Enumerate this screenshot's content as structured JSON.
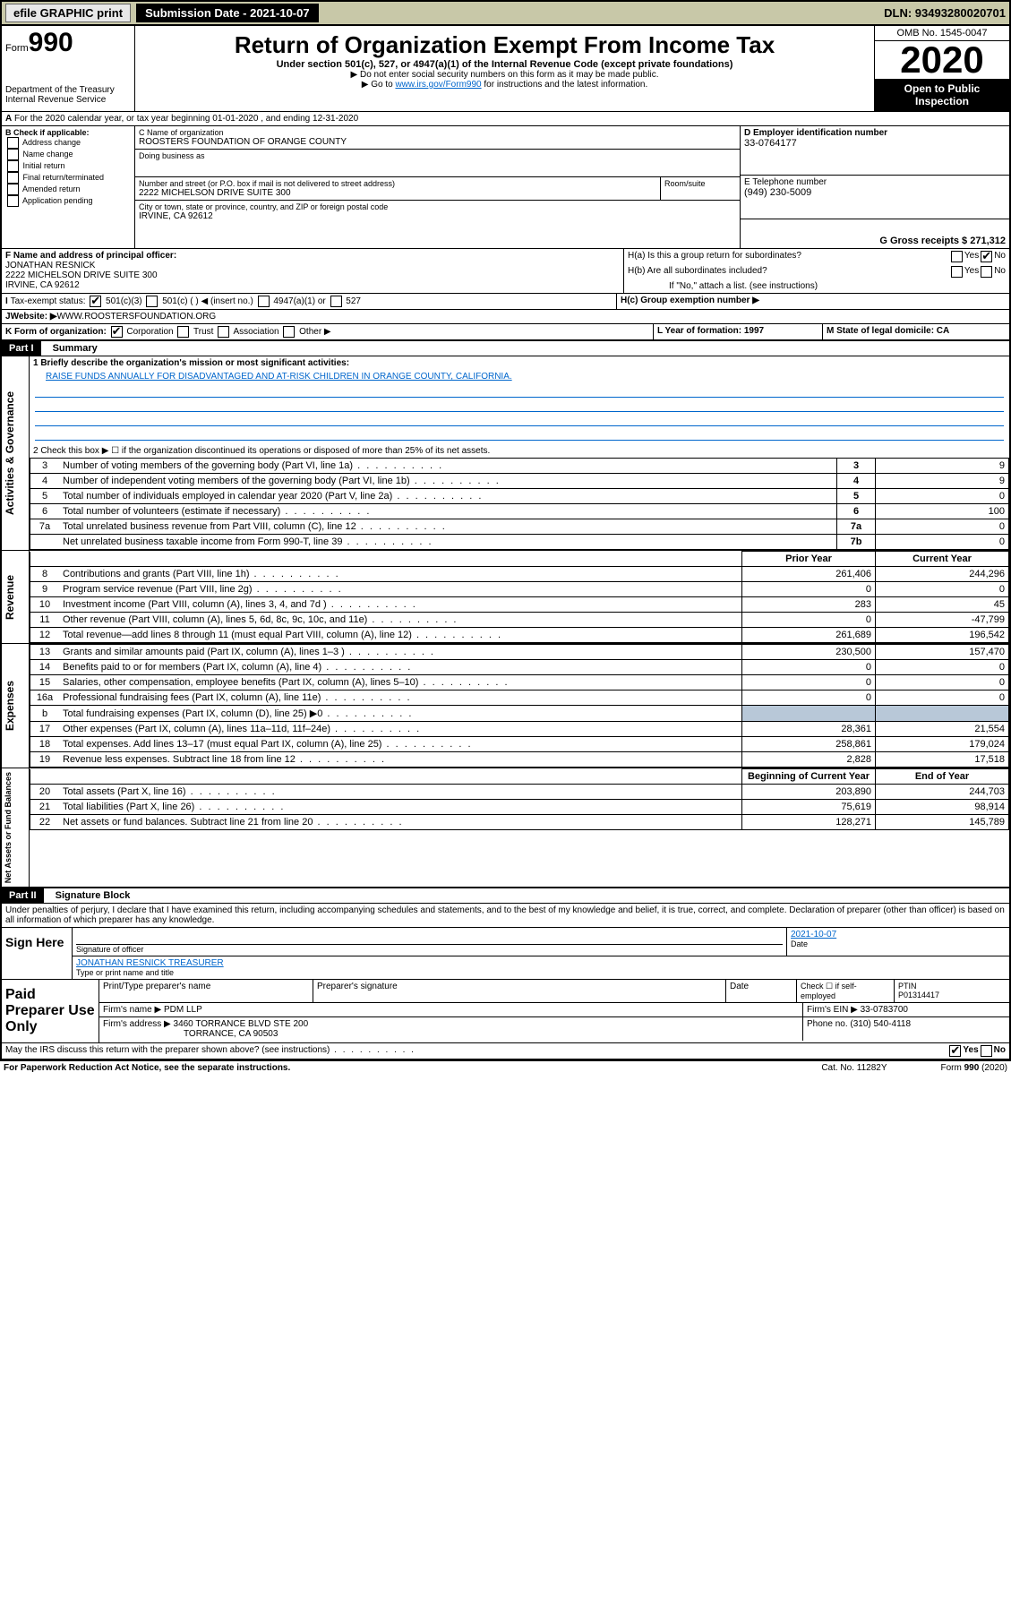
{
  "header": {
    "efile": "efile GRAPHIC print",
    "subdate_label": "Submission Date - 2021-10-07",
    "dln": "DLN: 93493280020701"
  },
  "title_block": {
    "form_label": "Form",
    "form_num": "990",
    "dept": "Department of the Treasury\nInternal Revenue Service",
    "title": "Return of Organization Exempt From Income Tax",
    "sub1": "Under section 501(c), 527, or 4947(a)(1) of the Internal Revenue Code (except private foundations)",
    "sub2": "▶ Do not enter social security numbers on this form as it may be made public.",
    "sub3_pre": "▶ Go to ",
    "sub3_link": "www.irs.gov/Form990",
    "sub3_post": " for instructions and the latest information.",
    "omb": "OMB No. 1545-0047",
    "year": "2020",
    "open": "Open to Public Inspection"
  },
  "period": {
    "line": "For the 2020 calendar year, or tax year beginning 01-01-2020     , and ending 12-31-2020"
  },
  "boxB": {
    "label": "B Check if applicable:",
    "items": [
      "Address change",
      "Name change",
      "Initial return",
      "Final return/terminated",
      "Amended return",
      "Application pending"
    ]
  },
  "boxC": {
    "label": "C Name of organization",
    "name": "ROOSTERS FOUNDATION OF ORANGE COUNTY",
    "dba_label": "Doing business as",
    "street_label": "Number and street (or P.O. box if mail is not delivered to street address)",
    "room_label": "Room/suite",
    "street": "2222 MICHELSON DRIVE SUITE 300",
    "city_label": "City or town, state or province, country, and ZIP or foreign postal code",
    "city": "IRVINE, CA  92612"
  },
  "boxD": {
    "label": "D Employer identification number",
    "value": "33-0764177"
  },
  "boxE": {
    "label": "E Telephone number",
    "value": "(949) 230-5009"
  },
  "boxG": {
    "label": "G Gross receipts $ 271,312"
  },
  "boxF": {
    "label": "F  Name and address of principal officer:",
    "name": "JONATHAN RESNICK",
    "addr1": "2222 MICHELSON DRIVE SUITE 300",
    "addr2": "IRVINE, CA  92612"
  },
  "boxH": {
    "a": "H(a)  Is this a group return for subordinates?",
    "b": "H(b)  Are all subordinates included?",
    "b_note": "If \"No,\" attach a list. (see instructions)",
    "c": "H(c)  Group exemption number ▶",
    "yes": "Yes",
    "no": "No"
  },
  "boxI": {
    "label": "Tax-exempt status:",
    "opts": [
      "501(c)(3)",
      "501(c) (   ) ◀ (insert no.)",
      "4947(a)(1) or",
      "527"
    ]
  },
  "boxJ": {
    "label": "Website: ▶",
    "value": "WWW.ROOSTERSFOUNDATION.ORG"
  },
  "boxK": {
    "label": "K Form of organization:",
    "opts": [
      "Corporation",
      "Trust",
      "Association",
      "Other ▶"
    ]
  },
  "boxL": {
    "label": "L Year of formation: 1997"
  },
  "boxM": {
    "label": "M State of legal domicile: CA"
  },
  "part1": {
    "head": "Part I",
    "title": "Summary"
  },
  "summary": {
    "l1": "1  Briefly describe the organization's mission or most significant activities:",
    "l1v": "RAISE FUNDS ANNUALLY FOR DISADVANTAGED AND AT-RISK CHILDREN IN ORANGE COUNTY, CALIFORNIA.",
    "l2": "2   Check this box ▶ ☐  if the organization discontinued its operations or disposed of more than 25% of its net assets.",
    "rows_gov": [
      {
        "n": "3",
        "d": "Number of voting members of the governing body (Part VI, line 1a)",
        "box": "3",
        "v": "9"
      },
      {
        "n": "4",
        "d": "Number of independent voting members of the governing body (Part VI, line 1b)",
        "box": "4",
        "v": "9"
      },
      {
        "n": "5",
        "d": "Total number of individuals employed in calendar year 2020 (Part V, line 2a)",
        "box": "5",
        "v": "0"
      },
      {
        "n": "6",
        "d": "Total number of volunteers (estimate if necessary)",
        "box": "6",
        "v": "100"
      },
      {
        "n": "7a",
        "d": "Total unrelated business revenue from Part VIII, column (C), line 12",
        "box": "7a",
        "v": "0"
      },
      {
        "n": "",
        "d": "Net unrelated business taxable income from Form 990-T, line 39",
        "box": "7b",
        "v": "0"
      }
    ],
    "col_prior": "Prior Year",
    "col_curr": "Current Year",
    "rows_rev": [
      {
        "n": "8",
        "d": "Contributions and grants (Part VIII, line 1h)",
        "p": "261,406",
        "c": "244,296"
      },
      {
        "n": "9",
        "d": "Program service revenue (Part VIII, line 2g)",
        "p": "0",
        "c": "0"
      },
      {
        "n": "10",
        "d": "Investment income (Part VIII, column (A), lines 3, 4, and 7d )",
        "p": "283",
        "c": "45"
      },
      {
        "n": "11",
        "d": "Other revenue (Part VIII, column (A), lines 5, 6d, 8c, 9c, 10c, and 11e)",
        "p": "0",
        "c": "-47,799"
      },
      {
        "n": "12",
        "d": "Total revenue—add lines 8 through 11 (must equal Part VIII, column (A), line 12)",
        "p": "261,689",
        "c": "196,542"
      }
    ],
    "rows_exp": [
      {
        "n": "13",
        "d": "Grants and similar amounts paid (Part IX, column (A), lines 1–3 )",
        "p": "230,500",
        "c": "157,470"
      },
      {
        "n": "14",
        "d": "Benefits paid to or for members (Part IX, column (A), line 4)",
        "p": "0",
        "c": "0"
      },
      {
        "n": "15",
        "d": "Salaries, other compensation, employee benefits (Part IX, column (A), lines 5–10)",
        "p": "0",
        "c": "0"
      },
      {
        "n": "16a",
        "d": "Professional fundraising fees (Part IX, column (A), line 11e)",
        "p": "0",
        "c": "0"
      },
      {
        "n": "b",
        "d": "Total fundraising expenses (Part IX, column (D), line 25) ▶0",
        "p": "",
        "c": "",
        "shaded": true
      },
      {
        "n": "17",
        "d": "Other expenses (Part IX, column (A), lines 11a–11d, 11f–24e)",
        "p": "28,361",
        "c": "21,554"
      },
      {
        "n": "18",
        "d": "Total expenses. Add lines 13–17 (must equal Part IX, column (A), line 25)",
        "p": "258,861",
        "c": "179,024"
      },
      {
        "n": "19",
        "d": "Revenue less expenses. Subtract line 18 from line 12",
        "p": "2,828",
        "c": "17,518"
      }
    ],
    "col_begin": "Beginning of Current Year",
    "col_end": "End of Year",
    "rows_net": [
      {
        "n": "20",
        "d": "Total assets (Part X, line 16)",
        "p": "203,890",
        "c": "244,703"
      },
      {
        "n": "21",
        "d": "Total liabilities (Part X, line 26)",
        "p": "75,619",
        "c": "98,914"
      },
      {
        "n": "22",
        "d": "Net assets or fund balances. Subtract line 21 from line 20",
        "p": "128,271",
        "c": "145,789"
      }
    ]
  },
  "vlabels": {
    "gov": "Activities & Governance",
    "rev": "Revenue",
    "exp": "Expenses",
    "net": "Net Assets or Fund Balances"
  },
  "part2": {
    "head": "Part II",
    "title": "Signature Block"
  },
  "sig": {
    "decl": "Under penalties of perjury, I declare that I have examined this return, including accompanying schedules and statements, and to the best of my knowledge and belief, it is true, correct, and complete. Declaration of preparer (other than officer) is based on all information of which preparer has any knowledge.",
    "sign_here": "Sign Here",
    "sig_officer": "Signature of officer",
    "date": "2021-10-07",
    "date_label": "Date",
    "name": "JONATHAN RESNICK TREASURER",
    "name_label": "Type or print name and title"
  },
  "paid": {
    "label": "Paid Preparer Use Only",
    "r1": {
      "c1": "Print/Type preparer's name",
      "c2": "Preparer's signature",
      "c3": "Date",
      "c4a": "Check ☐ if self-employed",
      "c5a": "PTIN",
      "c5b": "P01314417"
    },
    "r2": {
      "c1": "Firm's name    ▶ PDM LLP",
      "c2": "Firm's EIN ▶ 33-0783700"
    },
    "r3": {
      "c1": "Firm's address ▶ 3460 TORRANCE BLVD STE 200",
      "c1b": "TORRANCE, CA  90503",
      "c2": "Phone no. (310) 540-4118"
    }
  },
  "footer": {
    "discuss": "May the IRS discuss this return with the preparer shown above? (see instructions)",
    "yes": "Yes",
    "no": "No",
    "pra": "For Paperwork Reduction Act Notice, see the separate instructions.",
    "cat": "Cat. No. 11282Y",
    "form": "Form 990 (2020)"
  }
}
